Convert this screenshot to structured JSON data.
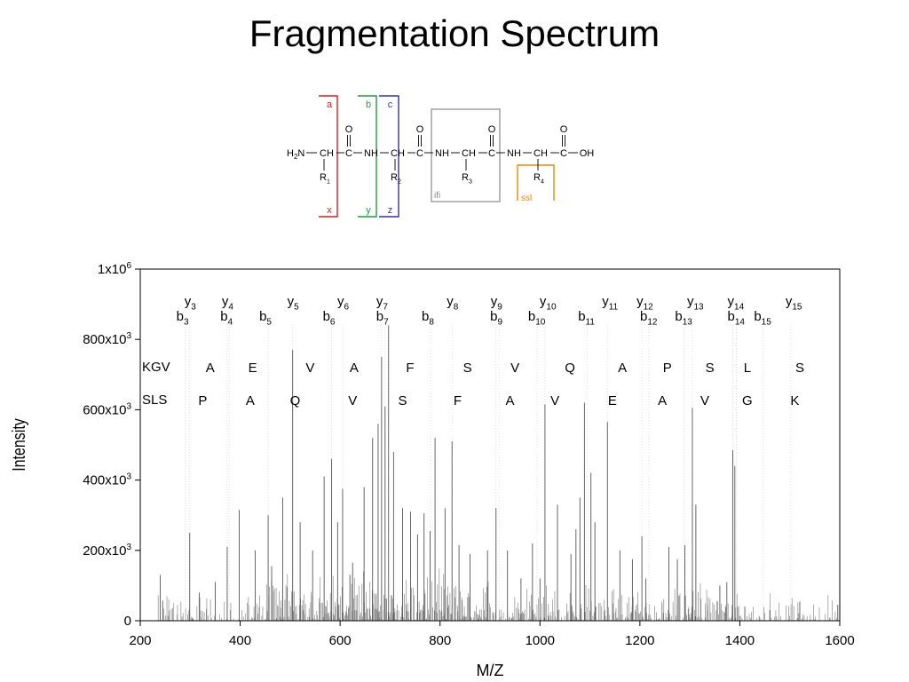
{
  "slide_title": "Fragmentation Spectrum",
  "structure": {
    "boxes": [
      {
        "top": "a",
        "bottom": "x",
        "color": "#cc2222"
      },
      {
        "top": "b",
        "bottom": "y",
        "color": "#229944"
      },
      {
        "top": "c",
        "bottom": "z",
        "color": "#333399"
      }
    ],
    "ifi_label": "ifi",
    "ssl_label": "ssl",
    "ifi_color": "#888888",
    "ssl_color": "#ee8800",
    "atoms": {
      "h2n": "H",
      "h2n_sub": "2",
      "n": "N",
      "ch": "CH",
      "c": "C",
      "nh": "NH",
      "o": "O",
      "oh": "OH",
      "r": "R",
      "r_subs": [
        "1",
        "2",
        "3",
        "4"
      ]
    }
  },
  "chart_data": {
    "type": "bar",
    "title": "",
    "xlabel": "M/Z",
    "ylabel": "Intensity",
    "xlim": [
      200,
      1600
    ],
    "ylim": [
      0,
      1000000
    ],
    "xticks": [
      200,
      400,
      600,
      800,
      1000,
      1200,
      1400,
      1600
    ],
    "xtick_labels": [
      "200",
      "400",
      "600",
      "800",
      "1000",
      "1200",
      "1400",
      "1600"
    ],
    "yticks": [
      0,
      200000,
      400000,
      600000,
      800000,
      1000000
    ],
    "ytick_labels": [
      {
        "base": "0",
        "sup": ""
      },
      {
        "base": "200x10",
        "sup": "3"
      },
      {
        "base": "400x10",
        "sup": "3"
      },
      {
        "base": "600x10",
        "sup": "3"
      },
      {
        "base": "800x10",
        "sup": "3"
      },
      {
        "base": "1x10",
        "sup": "6"
      }
    ],
    "grid": false,
    "line_color": "#555555",
    "peaks": [
      [
        240,
        130000
      ],
      [
        299,
        250000
      ],
      [
        318,
        80000
      ],
      [
        350,
        110000
      ],
      [
        374,
        210000
      ],
      [
        398,
        315000
      ],
      [
        430,
        200000
      ],
      [
        456,
        300000
      ],
      [
        463,
        155000
      ],
      [
        485,
        350000
      ],
      [
        505,
        770000
      ],
      [
        520,
        280000
      ],
      [
        545,
        200000
      ],
      [
        568,
        410000
      ],
      [
        583,
        460000
      ],
      [
        595,
        280000
      ],
      [
        605,
        375000
      ],
      [
        625,
        165000
      ],
      [
        648,
        380000
      ],
      [
        665,
        520000
      ],
      [
        676,
        560000
      ],
      [
        683,
        750000
      ],
      [
        690,
        610000
      ],
      [
        697,
        840000
      ],
      [
        707,
        480000
      ],
      [
        725,
        320000
      ],
      [
        741,
        310000
      ],
      [
        755,
        245000
      ],
      [
        768,
        305000
      ],
      [
        780,
        255000
      ],
      [
        790,
        520000
      ],
      [
        810,
        320000
      ],
      [
        824,
        510000
      ],
      [
        838,
        215000
      ],
      [
        860,
        190000
      ],
      [
        895,
        200000
      ],
      [
        912,
        320000
      ],
      [
        935,
        200000
      ],
      [
        962,
        120000
      ],
      [
        985,
        220000
      ],
      [
        1000,
        120000
      ],
      [
        1010,
        615000
      ],
      [
        1035,
        330000
      ],
      [
        1062,
        190000
      ],
      [
        1072,
        260000
      ],
      [
        1080,
        350000
      ],
      [
        1089,
        620000
      ],
      [
        1102,
        420000
      ],
      [
        1110,
        280000
      ],
      [
        1135,
        565000
      ],
      [
        1160,
        200000
      ],
      [
        1185,
        175000
      ],
      [
        1204,
        240000
      ],
      [
        1212,
        120000
      ],
      [
        1258,
        210000
      ],
      [
        1275,
        175000
      ],
      [
        1290,
        215000
      ],
      [
        1305,
        605000
      ],
      [
        1312,
        330000
      ],
      [
        1360,
        100000
      ],
      [
        1374,
        110000
      ],
      [
        1386,
        485000
      ],
      [
        1390,
        440000
      ],
      [
        1410,
        40000
      ],
      [
        1460,
        30000
      ],
      [
        1520,
        55000
      ],
      [
        1596,
        45000
      ]
    ],
    "ion_labels": {
      "y": [
        {
          "n": "3",
          "mz": 299
        },
        {
          "n": "4",
          "mz": 374
        },
        {
          "n": "5",
          "mz": 505
        },
        {
          "n": "6",
          "mz": 605
        },
        {
          "n": "7",
          "mz": 683
        },
        {
          "n": "8",
          "mz": 824
        },
        {
          "n": "9",
          "mz": 912
        },
        {
          "n": "10",
          "mz": 1010
        },
        {
          "n": "11",
          "mz": 1135
        },
        {
          "n": "12",
          "mz": 1204
        },
        {
          "n": "13",
          "mz": 1305
        },
        {
          "n": "14",
          "mz": 1386
        },
        {
          "n": "15",
          "mz": 1502
        }
      ],
      "b": [
        {
          "n": "3",
          "mz": 290
        },
        {
          "n": "4",
          "mz": 378
        },
        {
          "n": "5",
          "mz": 456
        },
        {
          "n": "6",
          "mz": 583
        },
        {
          "n": "7",
          "mz": 690
        },
        {
          "n": "8",
          "mz": 781
        },
        {
          "n": "9",
          "mz": 918
        },
        {
          "n": "10",
          "mz": 994
        },
        {
          "n": "11",
          "mz": 1094
        },
        {
          "n": "12",
          "mz": 1218
        },
        {
          "n": "13",
          "mz": 1288
        },
        {
          "n": "14",
          "mz": 1393
        },
        {
          "n": "15",
          "mz": 1446
        }
      ]
    },
    "sequence_rows": [
      {
        "prefix": "KGV",
        "residues": [
          {
            "aa": "A",
            "mz": 340
          },
          {
            "aa": "E",
            "mz": 425
          },
          {
            "aa": "V",
            "mz": 540
          },
          {
            "aa": "A",
            "mz": 628
          },
          {
            "aa": "F",
            "mz": 740
          },
          {
            "aa": "S",
            "mz": 855
          },
          {
            "aa": "V",
            "mz": 950
          },
          {
            "aa": "Q",
            "mz": 1060
          },
          {
            "aa": "A",
            "mz": 1165
          },
          {
            "aa": "P",
            "mz": 1255
          },
          {
            "aa": "S",
            "mz": 1340
          },
          {
            "aa": "L",
            "mz": 1415
          },
          {
            "aa": "S",
            "mz": 1520
          }
        ]
      },
      {
        "prefix": "SLS",
        "residues": [
          {
            "aa": "P",
            "mz": 325
          },
          {
            "aa": "A",
            "mz": 420
          },
          {
            "aa": "Q",
            "mz": 510
          },
          {
            "aa": "V",
            "mz": 625
          },
          {
            "aa": "S",
            "mz": 725
          },
          {
            "aa": "F",
            "mz": 835
          },
          {
            "aa": "A",
            "mz": 940
          },
          {
            "aa": "V",
            "mz": 1030
          },
          {
            "aa": "E",
            "mz": 1145
          },
          {
            "aa": "A",
            "mz": 1245
          },
          {
            "aa": "V",
            "mz": 1330
          },
          {
            "aa": "G",
            "mz": 1415
          },
          {
            "aa": "K",
            "mz": 1510
          }
        ]
      }
    ]
  }
}
